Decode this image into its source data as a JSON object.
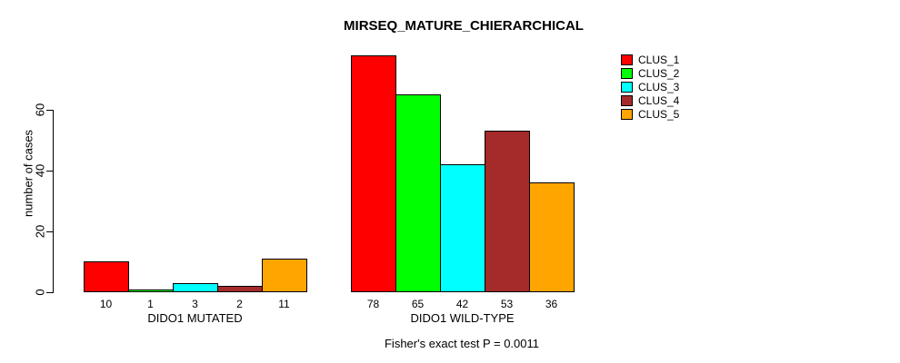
{
  "chart_data": {
    "type": "bar",
    "title": "MIRSEQ_MATURE_CHIERARCHICAL",
    "ylabel": "number of cases",
    "xlabel": "",
    "annotation": "Fisher's exact test P = 0.0011",
    "yticks": [
      0,
      20,
      40,
      60
    ],
    "ylim": [
      0,
      78
    ],
    "grid": false,
    "legend_position": "right-outside",
    "background_color": "#FFFFFF",
    "axis_color": "#000000",
    "series": [
      {
        "name": "CLUS_1",
        "color": "#FF0000"
      },
      {
        "name": "CLUS_2",
        "color": "#00FF00"
      },
      {
        "name": "CLUS_3",
        "color": "#00FFFF"
      },
      {
        "name": "CLUS_4",
        "color": "#A52A2A"
      },
      {
        "name": "CLUS_5",
        "color": "#FFA500"
      }
    ],
    "groups": [
      {
        "label": "DIDO1 MUTATED",
        "values": [
          10,
          1,
          3,
          2,
          11
        ]
      },
      {
        "label": "DIDO1 WILD-TYPE",
        "values": [
          78,
          65,
          42,
          53,
          36
        ]
      }
    ]
  }
}
